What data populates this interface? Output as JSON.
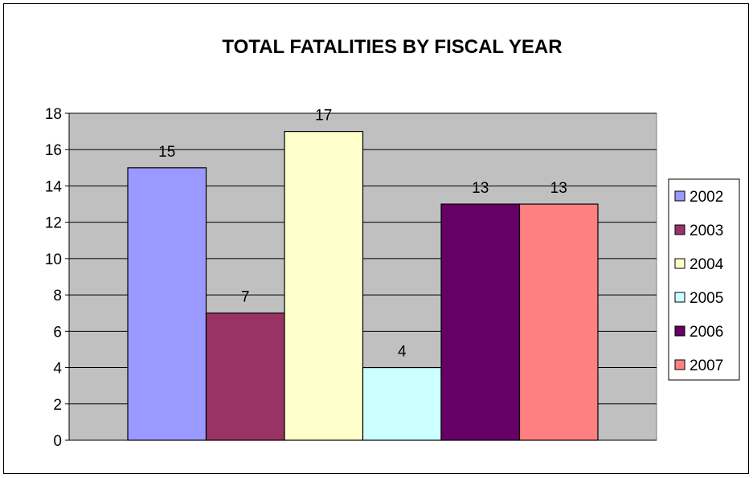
{
  "chart_data": {
    "type": "bar",
    "title": "TOTAL FATALITIES BY FISCAL YEAR",
    "xlabel": "",
    "ylabel": "",
    "ylim": [
      0,
      18
    ],
    "yticks": [
      0,
      2,
      4,
      6,
      8,
      10,
      12,
      14,
      16,
      18
    ],
    "grid": true,
    "legend_position": "right",
    "plot_background": "#C0C0C0",
    "series": [
      {
        "name": "2002",
        "values": [
          15
        ],
        "color": "#9999FF"
      },
      {
        "name": "2003",
        "values": [
          7
        ],
        "color": "#993366"
      },
      {
        "name": "2004",
        "values": [
          17
        ],
        "color": "#FFFFCC"
      },
      {
        "name": "2005",
        "values": [
          4
        ],
        "color": "#CCFFFF"
      },
      {
        "name": "2006",
        "values": [
          13
        ],
        "color": "#660066"
      },
      {
        "name": "2007",
        "values": [
          13
        ],
        "color": "#FF8080"
      }
    ],
    "data_labels": [
      "15",
      "7",
      "17",
      "4",
      "13",
      "13"
    ]
  }
}
